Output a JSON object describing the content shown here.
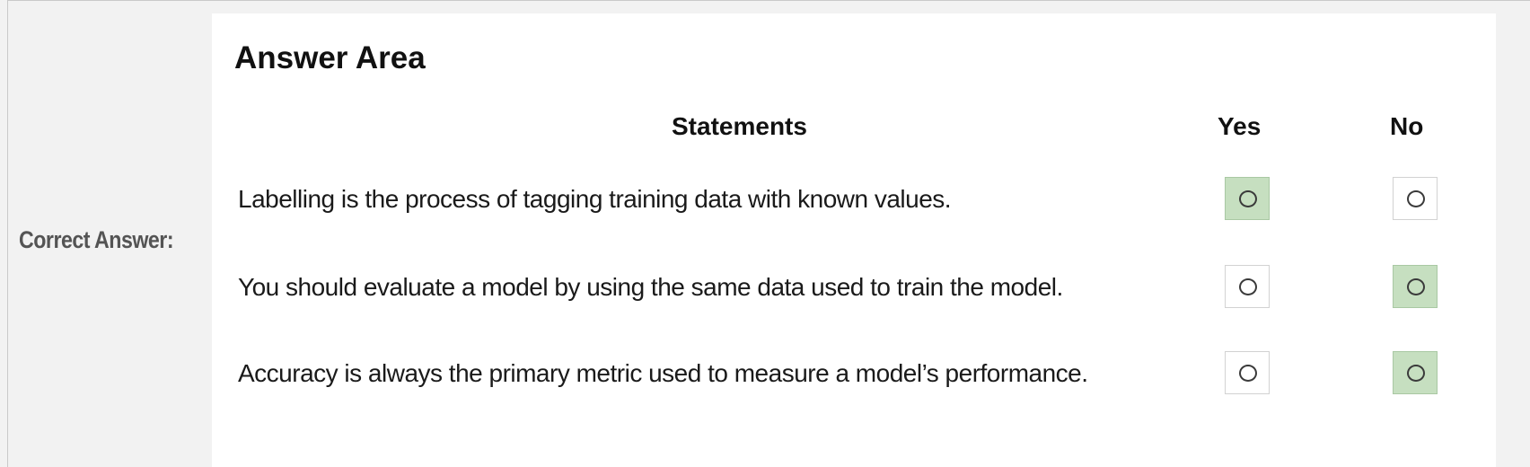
{
  "label": "Correct Answer:",
  "answer_area": {
    "title": "Answer Area",
    "headers": {
      "statements": "Statements",
      "yes": "Yes",
      "no": "No"
    },
    "rows": [
      {
        "text": "Labelling is the process of tagging training data with known values.",
        "selected": "yes"
      },
      {
        "text": "You should evaluate a model by using the same data used to train the model.",
        "selected": "no"
      },
      {
        "text": "Accuracy is always the primary metric used to measure a model’s performance.",
        "selected": "no"
      }
    ]
  },
  "colors": {
    "selected_highlight": "#c6dfc0",
    "label_text": "#545454"
  }
}
